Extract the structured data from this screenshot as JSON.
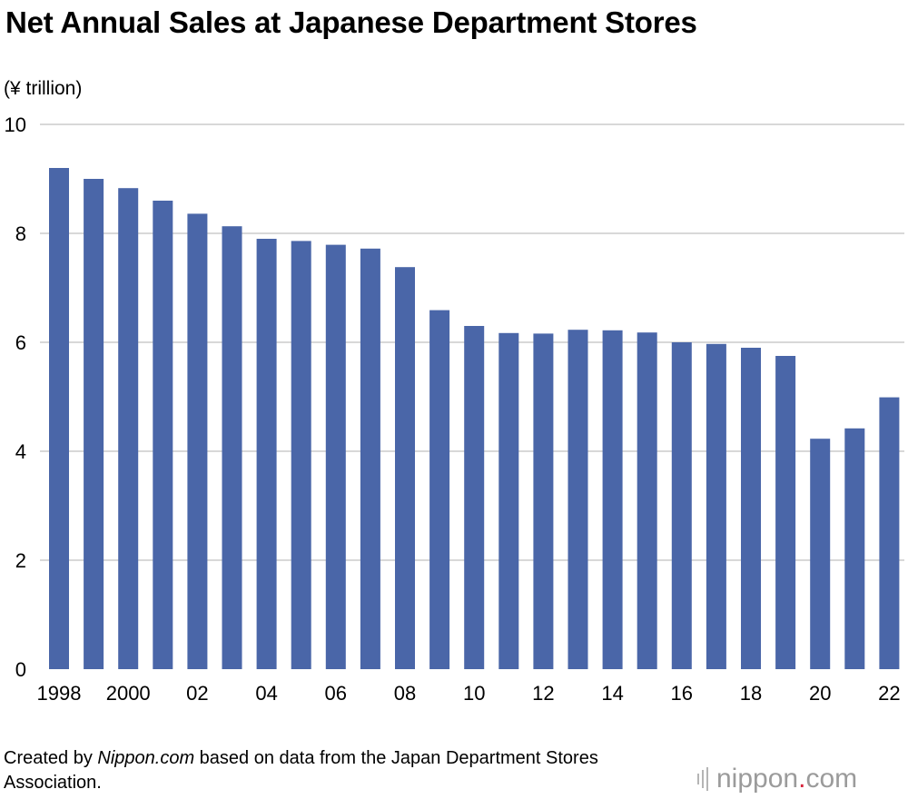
{
  "chart_data": {
    "type": "bar",
    "title": "Net Annual Sales at Japanese Department Stores",
    "ylabel": "(¥ trillion)",
    "xlabel": "",
    "ylim": [
      0,
      10
    ],
    "yticks": [
      0,
      2,
      4,
      6,
      8,
      10
    ],
    "grid": true,
    "categories": [
      "1998",
      "1999",
      "2000",
      "2001",
      "2002",
      "2003",
      "2004",
      "2005",
      "2006",
      "2007",
      "2008",
      "2009",
      "2010",
      "2011",
      "2012",
      "2013",
      "2014",
      "2015",
      "2016",
      "2017",
      "2018",
      "2019",
      "2020",
      "2021",
      "2022"
    ],
    "x_tick_labels": [
      "1998",
      "2000",
      "02",
      "04",
      "06",
      "08",
      "10",
      "12",
      "14",
      "16",
      "18",
      "20",
      "22"
    ],
    "x_tick_categories": [
      "1998",
      "2000",
      "2002",
      "2004",
      "2006",
      "2008",
      "2010",
      "2012",
      "2014",
      "2016",
      "2018",
      "2020",
      "2022"
    ],
    "values": [
      9.2,
      9.0,
      8.83,
      8.6,
      8.36,
      8.13,
      7.9,
      7.86,
      7.79,
      7.72,
      7.38,
      6.59,
      6.3,
      6.17,
      6.16,
      6.23,
      6.22,
      6.18,
      6.0,
      5.97,
      5.9,
      5.75,
      4.23,
      4.42,
      4.99
    ],
    "bar_color": "#4a66a8",
    "grid_color": "#cccccc"
  },
  "footer": {
    "prefix": "Created by ",
    "source_name": "Nippon.com",
    "suffix": " based on data from the Japan Department Stores Association."
  },
  "logo": {
    "text_main": "nippon",
    "text_dot": ".",
    "text_tld": "com"
  }
}
